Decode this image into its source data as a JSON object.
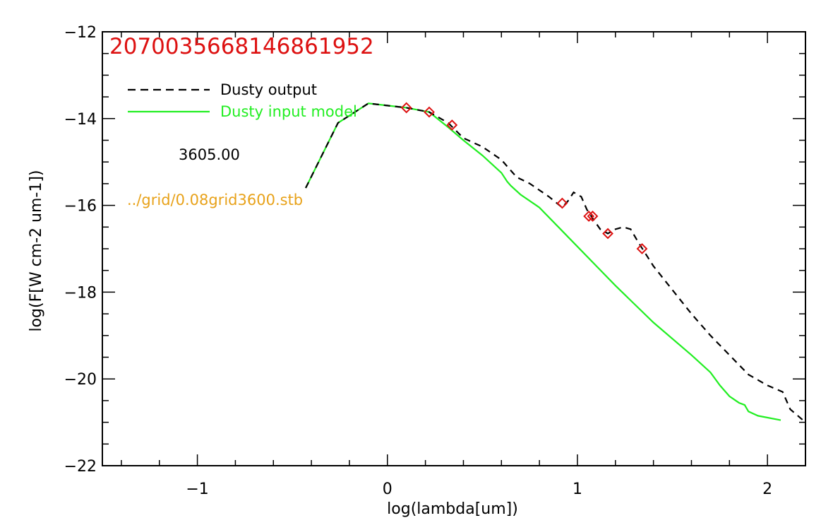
{
  "chart_data": {
    "type": "line",
    "title": "2070035668146861952",
    "xlabel": "log(lambda[um])",
    "ylabel": "log(F[W cm-2 um-1])",
    "xlim": [
      -1.5,
      2.2
    ],
    "ylim": [
      -22,
      -12
    ],
    "xticks": [
      -1,
      0,
      1,
      2
    ],
    "xtick_labels": [
      "−1",
      "0",
      "1",
      "2"
    ],
    "yticks": [
      -22,
      -20,
      -18,
      -16,
      -14,
      -12
    ],
    "ytick_labels": [
      "−22",
      "−20",
      "−18",
      "−16",
      "−14",
      "−12"
    ],
    "legend_position": "top-left",
    "grid": false,
    "annotations": [
      {
        "name": "temperature-label",
        "text": "3605.00",
        "color": "#000000"
      },
      {
        "name": "grid-file-label",
        "text": "../grid/0.08grid3600.stb",
        "color": "#e8a21a"
      }
    ],
    "series": [
      {
        "name": "Dusty output",
        "style": "dashed",
        "color": "#000000",
        "x": [
          -0.43,
          -0.26,
          -0.1,
          0.0,
          0.1,
          0.22,
          0.32,
          0.4,
          0.5,
          0.6,
          0.63,
          0.68,
          0.75,
          0.85,
          0.92,
          0.95,
          0.98,
          1.02,
          1.05,
          1.08,
          1.12,
          1.16,
          1.2,
          1.24,
          1.28,
          1.32,
          1.4,
          1.5,
          1.6,
          1.7,
          1.8,
          1.9,
          2.0,
          2.08,
          2.12,
          2.2
        ],
        "y": [
          -15.6,
          -14.1,
          -13.65,
          -13.7,
          -13.75,
          -13.85,
          -14.1,
          -14.45,
          -14.65,
          -14.95,
          -15.1,
          -15.35,
          -15.5,
          -15.8,
          -16.05,
          -15.9,
          -15.7,
          -15.8,
          -16.1,
          -16.3,
          -16.55,
          -16.65,
          -16.55,
          -16.5,
          -16.55,
          -16.85,
          -17.4,
          -17.95,
          -18.5,
          -19.0,
          -19.45,
          -19.9,
          -20.15,
          -20.3,
          -20.7,
          -21.0
        ]
      },
      {
        "name": "Dusty input model",
        "style": "solid",
        "color": "#22ee22",
        "x": [
          -0.43,
          -0.26,
          -0.1,
          0.0,
          0.1,
          0.22,
          0.32,
          0.4,
          0.5,
          0.6,
          0.63,
          0.65,
          0.7,
          0.8,
          0.9,
          1.0,
          1.2,
          1.4,
          1.6,
          1.7,
          1.75,
          1.8,
          1.85,
          1.88,
          1.9,
          1.95,
          2.07
        ],
        "y": [
          -15.6,
          -14.1,
          -13.65,
          -13.7,
          -13.75,
          -13.85,
          -14.2,
          -14.5,
          -14.85,
          -15.25,
          -15.45,
          -15.55,
          -15.75,
          -16.05,
          -16.5,
          -16.95,
          -17.85,
          -18.7,
          -19.45,
          -19.85,
          -20.15,
          -20.4,
          -20.55,
          -20.6,
          -20.75,
          -20.85,
          -20.95
        ]
      },
      {
        "name": "photometry",
        "style": "markers",
        "marker": "diamond",
        "color": "#dd1111",
        "x": [
          0.1,
          0.22,
          0.34,
          0.92,
          1.06,
          1.08,
          1.16,
          1.34
        ],
        "y": [
          -13.75,
          -13.85,
          -14.15,
          -15.95,
          -16.25,
          -16.25,
          -16.65,
          -17.0
        ]
      }
    ]
  }
}
